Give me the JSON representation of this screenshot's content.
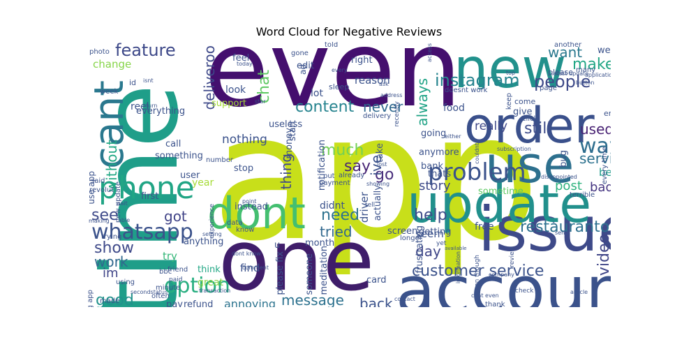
{
  "title": "Word Cloud for Negative Reviews",
  "words": [
    {
      "text": "app",
      "color": "#c8df1a"
    },
    {
      "text": "time",
      "color": "#1f9e89"
    },
    {
      "text": "even",
      "color": "#440f6e"
    },
    {
      "text": "one",
      "color": "#3f1d6a"
    },
    {
      "text": "account",
      "color": "#3b528b"
    },
    {
      "text": "order",
      "color": "#3a508b"
    },
    {
      "text": "new",
      "color": "#21918c"
    },
    {
      "text": "issue",
      "color": "#3e4a89"
    },
    {
      "text": "update",
      "color": "#21908c"
    },
    {
      "text": "use",
      "color": "#2d708e"
    },
    {
      "text": "dont",
      "color": "#44bf70"
    },
    {
      "text": "cant",
      "color": "#2a788e"
    },
    {
      "text": "phone",
      "color": "#21a585"
    },
    {
      "text": "problem",
      "color": "#3b528b"
    },
    {
      "text": "instagram",
      "color": "#25838e"
    },
    {
      "text": "customer service",
      "color": "#3b528b"
    },
    {
      "text": "whatsapp",
      "color": "#3b528b"
    },
    {
      "text": "option",
      "color": "#28ae80"
    },
    {
      "text": "feature",
      "color": "#3e4989"
    },
    {
      "text": "people",
      "color": "#3e4a89"
    },
    {
      "text": "make",
      "color": "#22a785"
    },
    {
      "text": "want",
      "color": "#2a788e"
    },
    {
      "text": "way",
      "color": "#2e6e8e"
    },
    {
      "text": "still",
      "color": "#3e4c8a"
    },
    {
      "text": "used",
      "color": "#482173"
    },
    {
      "text": "content",
      "color": "#25838e"
    },
    {
      "text": "never",
      "color": "#30688e"
    },
    {
      "text": "deliveroo",
      "color": "#3e4989"
    },
    {
      "text": "chat",
      "color": "#5ec962"
    },
    {
      "text": "say",
      "color": "#482475"
    },
    {
      "text": "go",
      "color": "#472d7b"
    },
    {
      "text": "need",
      "color": "#2c728e"
    },
    {
      "text": "help",
      "color": "#3e4c8a"
    },
    {
      "text": "restauranto",
      "color": "#2d708e"
    },
    {
      "text": "show",
      "color": "#3e4989"
    },
    {
      "text": "work",
      "color": "#31688e"
    },
    {
      "text": "good",
      "color": "#21918c"
    },
    {
      "text": "see",
      "color": "#3e4989"
    },
    {
      "text": "got",
      "color": "#404387"
    },
    {
      "text": "video",
      "color": "#404688"
    },
    {
      "text": "day",
      "color": "#404688"
    },
    {
      "text": "message",
      "color": "#2c718e"
    },
    {
      "text": "back",
      "color": "#3b528b"
    },
    {
      "text": "thing",
      "color": "#3f4889"
    },
    {
      "text": "much",
      "color": "#73d056"
    },
    {
      "text": "tried",
      "color": "#31688e"
    },
    {
      "text": "always",
      "color": "#20a386"
    },
    {
      "text": "really",
      "color": "#3f4889"
    },
    {
      "text": "service",
      "color": "#2c718e"
    },
    {
      "text": "post",
      "color": "#2db27d"
    },
    {
      "text": "bad",
      "color": "#453581"
    },
    {
      "text": "better",
      "color": "#1f9a8a"
    },
    {
      "text": "without",
      "color": "#22a884"
    },
    {
      "text": "change",
      "color": "#86d549"
    },
    {
      "text": "annoying",
      "color": "#2c738e"
    },
    {
      "text": "ive",
      "color": "#3b528b"
    },
    {
      "text": "story",
      "color": "#3e4a89"
    },
    {
      "text": "nothing",
      "color": "#3b528b"
    },
    {
      "text": "something",
      "color": "#3b528b"
    },
    {
      "text": "everything",
      "color": "#3b528b"
    },
    {
      "text": "im",
      "color": "#404588"
    },
    {
      "text": "use app",
      "color": "#3b528b"
    },
    {
      "text": "first",
      "color": "#3b528b"
    },
    {
      "text": "try",
      "color": "#35b779"
    },
    {
      "text": "find",
      "color": "#3b528b"
    },
    {
      "text": "great",
      "color": "#86d549"
    },
    {
      "text": "think",
      "color": "#22a785"
    },
    {
      "text": "driver",
      "color": "#3b528b"
    },
    {
      "text": "actually",
      "color": "#3b528b"
    },
    {
      "text": "didnt",
      "color": "#3b528b"
    },
    {
      "text": "instead",
      "color": "#3b528b"
    },
    {
      "text": "seem",
      "color": "#3b528b"
    },
    {
      "text": "getting",
      "color": "#3b528b"
    },
    {
      "text": "sometime",
      "color": "#5ec962"
    },
    {
      "text": "going",
      "color": "#3b528b"
    },
    {
      "text": "anymore",
      "color": "#3b528b"
    },
    {
      "text": "thats",
      "color": "#3b528b"
    },
    {
      "text": "notification",
      "color": "#3b528b"
    },
    {
      "text": "lot",
      "color": "#3b528b"
    },
    {
      "text": "reason",
      "color": "#3b528b"
    },
    {
      "text": "stop",
      "color": "#3b528b"
    },
    {
      "text": "free",
      "color": "#3b528b"
    },
    {
      "text": "food",
      "color": "#3b528b"
    },
    {
      "text": "year",
      "color": "#a5db36"
    },
    {
      "text": "call",
      "color": "#3b528b"
    },
    {
      "text": "reel",
      "color": "#3b528b"
    },
    {
      "text": "support",
      "color": "#a5db36"
    },
    {
      "text": "look",
      "color": "#3b528b"
    },
    {
      "text": "feel",
      "color": "#3b528b"
    },
    {
      "text": "edit",
      "color": "#3b528b"
    },
    {
      "text": "right",
      "color": "#3b528b"
    },
    {
      "text": "well",
      "color": "#3b528b"
    },
    {
      "text": "anything",
      "color": "#3b528b"
    },
    {
      "text": "user",
      "color": "#3b528b"
    },
    {
      "text": "someone",
      "color": "#3b528b"
    },
    {
      "text": "card",
      "color": "#3b528b"
    },
    {
      "text": "money",
      "color": "#3b528b"
    },
    {
      "text": "start",
      "color": "#3b528b"
    },
    {
      "text": "take",
      "color": "#3b528b"
    },
    {
      "text": "screen",
      "color": "#3b528b"
    },
    {
      "text": "bank",
      "color": "#3b528b"
    },
    {
      "text": "meditation",
      "color": "#3b528b"
    },
    {
      "text": "month",
      "color": "#3b528b"
    },
    {
      "text": "please fix",
      "color": "#3b528b"
    },
    {
      "text": "pay",
      "color": "#3b528b"
    },
    {
      "text": "refund",
      "color": "#3b528b"
    },
    {
      "text": "monzo",
      "color": "#3b528b"
    },
    {
      "text": "u",
      "color": "#3b528b"
    },
    {
      "text": "frustrating",
      "color": "#3b528b"
    },
    {
      "text": "even though",
      "color": "#3b528b"
    },
    {
      "text": "bug",
      "color": "#3b528b"
    },
    {
      "text": "give",
      "color": "#3b528b"
    },
    {
      "text": "come",
      "color": "#3b528b"
    },
    {
      "text": "email",
      "color": "#3b528b"
    },
    {
      "text": "every time",
      "color": "#3b528b"
    },
    {
      "text": "terrible",
      "color": "#3b528b"
    },
    {
      "text": "many",
      "color": "#3b528b"
    },
    {
      "text": "please",
      "color": "#3b528b"
    },
    {
      "text": "another",
      "color": "#3b528b"
    },
    {
      "text": "useless",
      "color": "#3b528b"
    },
    {
      "text": "photo",
      "color": "#3b528b"
    },
    {
      "text": "week",
      "color": "#3b528b"
    },
    {
      "text": "id",
      "color": "#3b528b"
    },
    {
      "text": "sleep",
      "color": "#3b528b"
    },
    {
      "text": "ad",
      "color": "#3b528b"
    },
    {
      "text": "gone",
      "color": "#3b528b"
    },
    {
      "text": "told",
      "color": "#3b528b"
    },
    {
      "text": "delivery",
      "color": "#3b528b"
    },
    {
      "text": "payment",
      "color": "#3b528b"
    },
    {
      "text": "already",
      "color": "#3b528b"
    },
    {
      "text": "put",
      "color": "#3b528b"
    },
    {
      "text": "data",
      "color": "#3b528b"
    },
    {
      "text": "know",
      "color": "#3b528b"
    },
    {
      "text": "revolut",
      "color": "#3b528b"
    },
    {
      "text": "said",
      "color": "#3b528b"
    },
    {
      "text": "trying",
      "color": "#3b528b"
    },
    {
      "text": "experience",
      "color": "#3b528b"
    },
    {
      "text": "number",
      "color": "#3b528b"
    },
    {
      "text": "friend",
      "color": "#3b528b"
    },
    {
      "text": "minute",
      "color": "#3b528b"
    },
    {
      "text": "often",
      "color": "#3b528b"
    },
    {
      "text": "using",
      "color": "#3b528b"
    },
    {
      "text": "made",
      "color": "#3b528b"
    },
    {
      "text": "using app",
      "color": "#3b528b"
    },
    {
      "text": "new update",
      "color": "#3b528b"
    },
    {
      "text": "doesnt work",
      "color": "#3b528b"
    },
    {
      "text": "keep",
      "color": "#3b528b"
    },
    {
      "text": "page",
      "color": "#3b528b"
    },
    {
      "text": "click",
      "color": "#3b528b"
    },
    {
      "text": "thank",
      "color": "#3b528b"
    },
    {
      "text": "check",
      "color": "#3b528b"
    },
    {
      "text": "longer",
      "color": "#3b528b"
    },
    {
      "text": "dont know",
      "color": "#3b528b"
    },
    {
      "text": "tell",
      "color": "#3b528b"
    },
    {
      "text": "yet",
      "color": "#3b528b"
    },
    {
      "text": "bbc",
      "color": "#3b528b"
    },
    {
      "text": "paid",
      "color": "#3b528b"
    },
    {
      "text": "transaction",
      "color": "#3b528b"
    },
    {
      "text": "available",
      "color": "#3b528b"
    },
    {
      "text": "review",
      "color": "#3b528b"
    },
    {
      "text": "disappointed",
      "color": "#3b528b"
    },
    {
      "text": "subscription",
      "color": "#3b528b"
    },
    {
      "text": "latest update",
      "color": "#3b528b"
    },
    {
      "text": "application",
      "color": "#3b528b"
    },
    {
      "text": "button",
      "color": "#3b528b"
    },
    {
      "text": "recently",
      "color": "#3b528b"
    },
    {
      "text": "access",
      "color": "#3b528b"
    },
    {
      "text": "address",
      "color": "#3b528b"
    },
    {
      "text": "ask",
      "color": "#3b528b"
    },
    {
      "text": "every",
      "color": "#3b528b"
    },
    {
      "text": "today",
      "color": "#3b528b"
    },
    {
      "text": "star",
      "color": "#3b528b"
    },
    {
      "text": "turn",
      "color": "#3b528b"
    },
    {
      "text": "isnt",
      "color": "#3b528b"
    },
    {
      "text": "wait",
      "color": "#3b528b"
    },
    {
      "text": "able",
      "color": "#3b528b"
    },
    {
      "text": "making",
      "color": "#3b528b"
    },
    {
      "text": "secondstatus",
      "color": "#3b528b"
    },
    {
      "text": "setting",
      "color": "#3b528b"
    },
    {
      "text": "comment",
      "color": "#3b528b"
    },
    {
      "text": "point",
      "color": "#3b528b"
    },
    {
      "text": "information",
      "color": "#3b528b"
    },
    {
      "text": "company",
      "color": "#3b528b"
    },
    {
      "text": "article",
      "color": "#3b528b"
    },
    {
      "text": "cant even",
      "color": "#3b528b"
    },
    {
      "text": "send",
      "color": "#3b528b"
    },
    {
      "text": "etc",
      "color": "#3b528b"
    },
    {
      "text": "contact",
      "color": "#3b528b"
    },
    {
      "text": "showing",
      "color": "#3b528b"
    },
    {
      "text": "couldnt",
      "color": "#3b528b"
    },
    {
      "text": "lost",
      "color": "#3b528b"
    },
    {
      "text": "either",
      "color": "#3b528b"
    },
    {
      "text": "top",
      "color": "#3b528b"
    }
  ]
}
